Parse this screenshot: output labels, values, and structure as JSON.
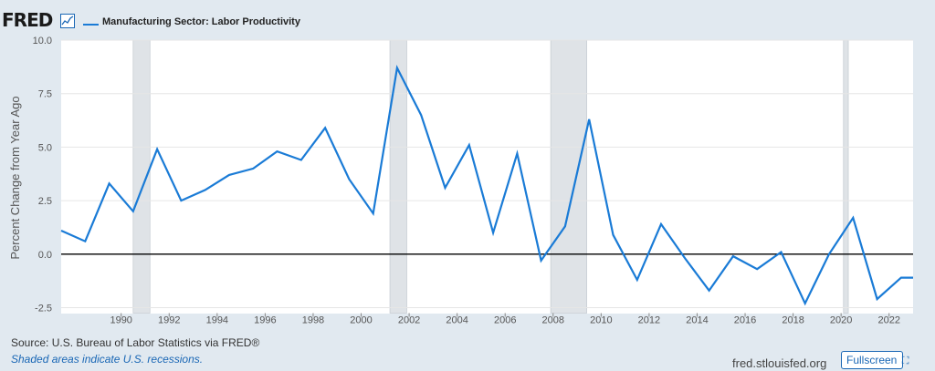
{
  "header": {
    "logo_text": "FRED",
    "logo_icon": "line-graph-icon",
    "series_label": "Manufacturing Sector: Labor Productivity",
    "series_color": "#1a7bd6"
  },
  "footer": {
    "source": "Source: U.S. Bureau of Labor Statistics via FRED®",
    "note": "Shaded areas indicate U.S. recessions.",
    "site": "fred.stlouisfed.org",
    "fullscreen_label": "Fullscreen",
    "fullscreen_icon": "expand-icon"
  },
  "chart_data": {
    "type": "line",
    "title": "",
    "ylabel": "Percent Change from Year Ago",
    "xlabel": "",
    "ylim": [
      -2.5,
      10.0
    ],
    "xlim": [
      1987.5,
      2023.0
    ],
    "y_ticks": [
      "-2.5",
      "0.0",
      "2.5",
      "5.0",
      "7.5",
      "10.0"
    ],
    "x_ticks": [
      "1990",
      "1992",
      "1994",
      "1996",
      "1998",
      "2000",
      "2002",
      "2004",
      "2006",
      "2008",
      "2010",
      "2012",
      "2014",
      "2016",
      "2018",
      "2020",
      "2022"
    ],
    "grid": true,
    "zero_line": true,
    "recessions": [
      [
        1990.5,
        1991.2
      ],
      [
        2001.2,
        2001.9
      ],
      [
        2007.9,
        2009.4
      ],
      [
        2020.1,
        2020.3
      ]
    ],
    "series": [
      {
        "name": "Manufacturing Sector: Labor Productivity",
        "color": "#1a7bd6",
        "x": [
          1987.5,
          1988.5,
          1989.5,
          1990.5,
          1991.5,
          1992.5,
          1993.5,
          1994.5,
          1995.5,
          1996.5,
          1997.5,
          1998.5,
          1999.5,
          2000.5,
          2001.5,
          2002.5,
          2003.5,
          2004.5,
          2005.5,
          2006.5,
          2007.5,
          2008.5,
          2009.5,
          2010.5,
          2011.5,
          2012.5,
          2013.5,
          2014.5,
          2015.5,
          2016.5,
          2017.5,
          2018.5,
          2019.5,
          2020.5,
          2021.5,
          2022.5,
          2023.0
        ],
        "y": [
          1.1,
          0.6,
          3.3,
          2.0,
          4.9,
          2.5,
          3.0,
          3.7,
          4.0,
          4.8,
          4.4,
          5.9,
          3.5,
          1.9,
          8.7,
          6.5,
          3.1,
          5.1,
          1.0,
          4.7,
          -0.3,
          1.3,
          6.3,
          0.9,
          -1.2,
          1.4,
          -0.2,
          -1.7,
          -0.1,
          -0.7,
          0.1,
          -2.3,
          0.0,
          1.7,
          -2.1,
          -1.1,
          -1.1
        ]
      }
    ]
  }
}
